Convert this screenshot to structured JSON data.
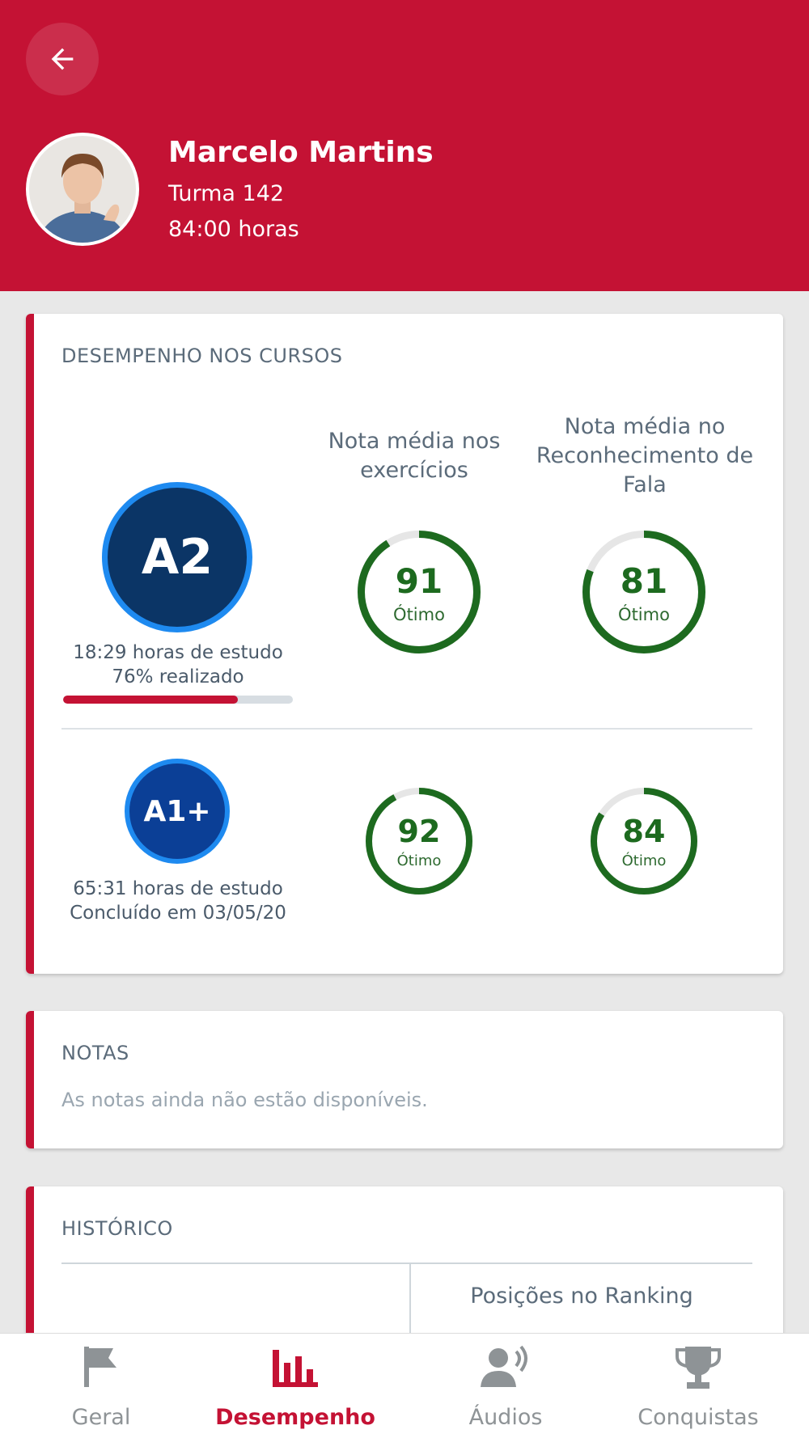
{
  "header": {
    "name": "Marcelo Martins",
    "class": "Turma 142",
    "hours": "84:00 horas"
  },
  "performance": {
    "title": "DESEMPENHO NOS CURSOS",
    "col_exercises": "Nota média nos exercícios",
    "col_speech": "Nota média no Reconhecimento de Fala",
    "courses": [
      {
        "level": "A2",
        "study": "18:29 horas de estudo",
        "status": "76% realizado",
        "progress_fraction": 0.76,
        "exercise_score": "91",
        "exercise_label": "Ótimo",
        "speech_score": "81",
        "speech_label": "Ótimo"
      },
      {
        "level": "A1+",
        "study": "65:31 horas de estudo",
        "status": "Concluído em 03/05/20",
        "exercise_score": "92",
        "exercise_label": "Ótimo",
        "speech_score": "84",
        "speech_label": "Ótimo"
      }
    ]
  },
  "notes": {
    "title": "NOTAS",
    "empty": "As notas ainda não estão disponíveis."
  },
  "history": {
    "title": "HISTÓRICO",
    "ranking_header": "Posições no Ranking"
  },
  "nav": [
    {
      "label": "Geral",
      "icon": "flag-icon"
    },
    {
      "label": "Desempenho",
      "icon": "bar-chart-icon"
    },
    {
      "label": "Áudios",
      "icon": "voice-icon"
    },
    {
      "label": "Conquistas",
      "icon": "trophy-icon"
    }
  ],
  "colors": {
    "brand_red": "#c41234",
    "score_green": "#1d6a1f",
    "level_a2": "#0b3566",
    "level_a1plus": "#0b3f96",
    "ring_blue": "#1e8af0"
  }
}
